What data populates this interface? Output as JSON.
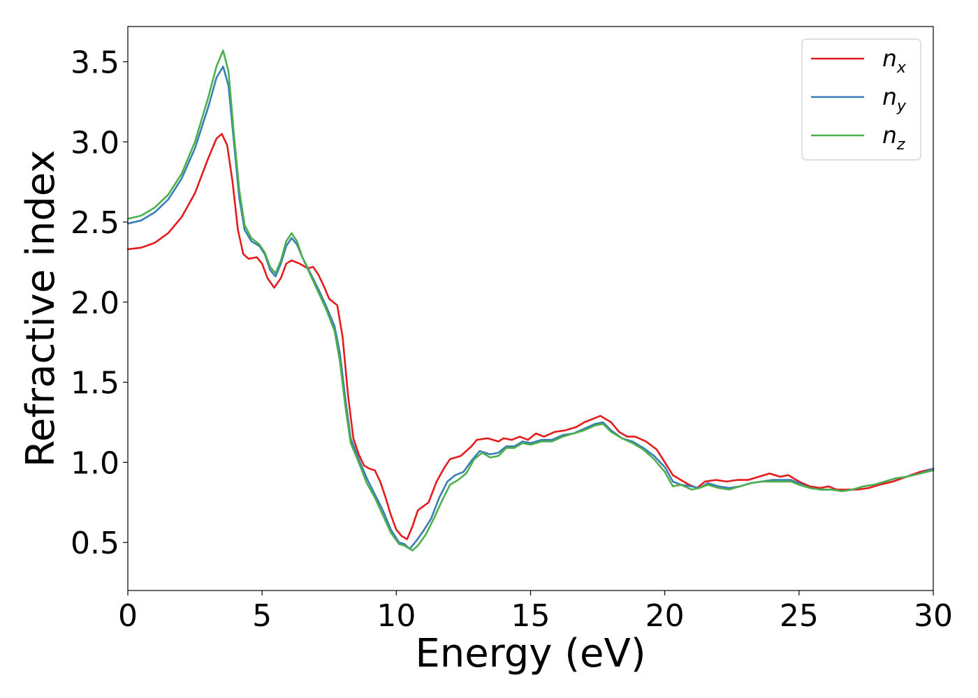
{
  "chart_data": {
    "type": "line",
    "xlabel": "Energy (eV)",
    "ylabel": "Refractive index",
    "xlim": [
      0,
      30
    ],
    "ylim": [
      0.2,
      3.72
    ],
    "xticks": [
      0,
      5,
      10,
      15,
      20,
      25,
      30
    ],
    "xtick_labels": [
      "0",
      "5",
      "10",
      "15",
      "20",
      "25",
      "30"
    ],
    "yticks": [
      0.5,
      1.0,
      1.5,
      2.0,
      2.5,
      3.0,
      3.5
    ],
    "ytick_labels": [
      "0.5",
      "1.0",
      "1.5",
      "2.0",
      "2.5",
      "3.0",
      "3.5"
    ],
    "grid": false,
    "legend_position": "top-right",
    "series": [
      {
        "name": "n",
        "subscript": "x",
        "color": "#e41a1c",
        "points": [
          [
            0,
            2.33
          ],
          [
            0.5,
            2.34
          ],
          [
            1,
            2.37
          ],
          [
            1.5,
            2.43
          ],
          [
            2,
            2.53
          ],
          [
            2.5,
            2.68
          ],
          [
            3,
            2.9
          ],
          [
            3.3,
            3.02
          ],
          [
            3.5,
            3.05
          ],
          [
            3.7,
            2.98
          ],
          [
            3.9,
            2.75
          ],
          [
            4.1,
            2.45
          ],
          [
            4.3,
            2.3
          ],
          [
            4.5,
            2.27
          ],
          [
            4.8,
            2.28
          ],
          [
            5.0,
            2.24
          ],
          [
            5.2,
            2.15
          ],
          [
            5.45,
            2.09
          ],
          [
            5.7,
            2.15
          ],
          [
            5.9,
            2.24
          ],
          [
            6.1,
            2.26
          ],
          [
            6.4,
            2.24
          ],
          [
            6.7,
            2.21
          ],
          [
            6.9,
            2.22
          ],
          [
            7.1,
            2.17
          ],
          [
            7.3,
            2.1
          ],
          [
            7.5,
            2.02
          ],
          [
            7.8,
            1.98
          ],
          [
            8.0,
            1.78
          ],
          [
            8.2,
            1.42
          ],
          [
            8.4,
            1.15
          ],
          [
            8.6,
            1.05
          ],
          [
            8.8,
            0.98
          ],
          [
            9.0,
            0.96
          ],
          [
            9.2,
            0.95
          ],
          [
            9.4,
            0.88
          ],
          [
            9.6,
            0.78
          ],
          [
            9.8,
            0.67
          ],
          [
            10.0,
            0.58
          ],
          [
            10.2,
            0.54
          ],
          [
            10.4,
            0.52
          ],
          [
            10.6,
            0.6
          ],
          [
            10.8,
            0.7
          ],
          [
            11.2,
            0.75
          ],
          [
            11.5,
            0.88
          ],
          [
            11.8,
            0.97
          ],
          [
            12.0,
            1.02
          ],
          [
            12.4,
            1.04
          ],
          [
            12.8,
            1.1
          ],
          [
            13.0,
            1.14
          ],
          [
            13.4,
            1.15
          ],
          [
            13.8,
            1.13
          ],
          [
            14.0,
            1.15
          ],
          [
            14.3,
            1.14
          ],
          [
            14.6,
            1.16
          ],
          [
            14.9,
            1.14
          ],
          [
            15.2,
            1.18
          ],
          [
            15.5,
            1.16
          ],
          [
            15.9,
            1.19
          ],
          [
            16.3,
            1.2
          ],
          [
            16.7,
            1.22
          ],
          [
            17.0,
            1.25
          ],
          [
            17.3,
            1.27
          ],
          [
            17.6,
            1.29
          ],
          [
            18.0,
            1.25
          ],
          [
            18.3,
            1.19
          ],
          [
            18.6,
            1.16
          ],
          [
            18.9,
            1.16
          ],
          [
            19.3,
            1.13
          ],
          [
            19.7,
            1.08
          ],
          [
            20.0,
            1.0
          ],
          [
            20.3,
            0.92
          ],
          [
            20.6,
            0.89
          ],
          [
            20.9,
            0.86
          ],
          [
            21.2,
            0.84
          ],
          [
            21.5,
            0.88
          ],
          [
            21.9,
            0.89
          ],
          [
            22.3,
            0.88
          ],
          [
            22.7,
            0.89
          ],
          [
            23.1,
            0.89
          ],
          [
            23.5,
            0.91
          ],
          [
            23.9,
            0.93
          ],
          [
            24.3,
            0.91
          ],
          [
            24.6,
            0.92
          ],
          [
            25.0,
            0.88
          ],
          [
            25.4,
            0.85
          ],
          [
            25.8,
            0.84
          ],
          [
            26.1,
            0.85
          ],
          [
            26.4,
            0.83
          ],
          [
            26.8,
            0.83
          ],
          [
            27.2,
            0.83
          ],
          [
            27.6,
            0.84
          ],
          [
            28.0,
            0.86
          ],
          [
            28.5,
            0.88
          ],
          [
            29.0,
            0.91
          ],
          [
            29.5,
            0.94
          ],
          [
            30.0,
            0.96
          ]
        ]
      },
      {
        "name": "n",
        "subscript": "y",
        "color": "#377eb8",
        "points": [
          [
            0,
            2.49
          ],
          [
            0.5,
            2.51
          ],
          [
            1,
            2.56
          ],
          [
            1.5,
            2.64
          ],
          [
            2,
            2.77
          ],
          [
            2.5,
            2.96
          ],
          [
            3.0,
            3.22
          ],
          [
            3.3,
            3.4
          ],
          [
            3.55,
            3.47
          ],
          [
            3.75,
            3.35
          ],
          [
            3.95,
            3.0
          ],
          [
            4.15,
            2.65
          ],
          [
            4.35,
            2.45
          ],
          [
            4.6,
            2.38
          ],
          [
            4.9,
            2.35
          ],
          [
            5.1,
            2.3
          ],
          [
            5.3,
            2.2
          ],
          [
            5.5,
            2.16
          ],
          [
            5.7,
            2.24
          ],
          [
            5.9,
            2.35
          ],
          [
            6.1,
            2.4
          ],
          [
            6.3,
            2.36
          ],
          [
            6.5,
            2.28
          ],
          [
            6.8,
            2.18
          ],
          [
            7.1,
            2.08
          ],
          [
            7.4,
            1.97
          ],
          [
            7.7,
            1.85
          ],
          [
            7.9,
            1.68
          ],
          [
            8.1,
            1.4
          ],
          [
            8.3,
            1.15
          ],
          [
            8.6,
            1.02
          ],
          [
            8.9,
            0.9
          ],
          [
            9.2,
            0.8
          ],
          [
            9.5,
            0.7
          ],
          [
            9.8,
            0.58
          ],
          [
            10.1,
            0.5
          ],
          [
            10.3,
            0.49
          ],
          [
            10.5,
            0.46
          ],
          [
            10.7,
            0.5
          ],
          [
            11.0,
            0.57
          ],
          [
            11.3,
            0.65
          ],
          [
            11.6,
            0.78
          ],
          [
            11.9,
            0.88
          ],
          [
            12.2,
            0.92
          ],
          [
            12.5,
            0.94
          ],
          [
            12.8,
            1.01
          ],
          [
            13.1,
            1.07
          ],
          [
            13.5,
            1.05
          ],
          [
            13.8,
            1.06
          ],
          [
            14.1,
            1.1
          ],
          [
            14.4,
            1.1
          ],
          [
            14.7,
            1.13
          ],
          [
            15.0,
            1.12
          ],
          [
            15.4,
            1.14
          ],
          [
            15.8,
            1.14
          ],
          [
            16.2,
            1.17
          ],
          [
            16.6,
            1.18
          ],
          [
            17.0,
            1.21
          ],
          [
            17.4,
            1.24
          ],
          [
            17.7,
            1.25
          ],
          [
            18.0,
            1.2
          ],
          [
            18.4,
            1.15
          ],
          [
            18.8,
            1.13
          ],
          [
            19.2,
            1.09
          ],
          [
            19.6,
            1.04
          ],
          [
            20.0,
            0.97
          ],
          [
            20.3,
            0.88
          ],
          [
            20.6,
            0.86
          ],
          [
            21.0,
            0.85
          ],
          [
            21.3,
            0.84
          ],
          [
            21.6,
            0.87
          ],
          [
            22.0,
            0.85
          ],
          [
            22.4,
            0.84
          ],
          [
            22.8,
            0.85
          ],
          [
            23.2,
            0.87
          ],
          [
            23.6,
            0.88
          ],
          [
            24.0,
            0.89
          ],
          [
            24.4,
            0.89
          ],
          [
            24.7,
            0.89
          ],
          [
            25.0,
            0.87
          ],
          [
            25.4,
            0.84
          ],
          [
            25.8,
            0.83
          ],
          [
            26.2,
            0.83
          ],
          [
            26.6,
            0.82
          ],
          [
            27.0,
            0.83
          ],
          [
            27.4,
            0.85
          ],
          [
            27.8,
            0.86
          ],
          [
            28.2,
            0.88
          ],
          [
            28.6,
            0.9
          ],
          [
            29.0,
            0.91
          ],
          [
            29.5,
            0.93
          ],
          [
            30.0,
            0.96
          ]
        ]
      },
      {
        "name": "n",
        "subscript": "z",
        "color": "#4daf4a",
        "points": [
          [
            0,
            2.52
          ],
          [
            0.5,
            2.54
          ],
          [
            1,
            2.59
          ],
          [
            1.5,
            2.67
          ],
          [
            2,
            2.8
          ],
          [
            2.5,
            3.0
          ],
          [
            3.0,
            3.28
          ],
          [
            3.3,
            3.47
          ],
          [
            3.55,
            3.57
          ],
          [
            3.75,
            3.44
          ],
          [
            3.95,
            3.05
          ],
          [
            4.15,
            2.7
          ],
          [
            4.35,
            2.48
          ],
          [
            4.6,
            2.4
          ],
          [
            4.9,
            2.36
          ],
          [
            5.1,
            2.31
          ],
          [
            5.3,
            2.22
          ],
          [
            5.5,
            2.18
          ],
          [
            5.7,
            2.26
          ],
          [
            5.9,
            2.38
          ],
          [
            6.1,
            2.43
          ],
          [
            6.3,
            2.38
          ],
          [
            6.5,
            2.28
          ],
          [
            6.8,
            2.17
          ],
          [
            7.1,
            2.06
          ],
          [
            7.4,
            1.95
          ],
          [
            7.7,
            1.82
          ],
          [
            7.9,
            1.63
          ],
          [
            8.1,
            1.35
          ],
          [
            8.3,
            1.12
          ],
          [
            8.6,
            1.0
          ],
          [
            8.9,
            0.87
          ],
          [
            9.2,
            0.78
          ],
          [
            9.5,
            0.67
          ],
          [
            9.8,
            0.56
          ],
          [
            10.1,
            0.49
          ],
          [
            10.3,
            0.48
          ],
          [
            10.6,
            0.45
          ],
          [
            10.8,
            0.48
          ],
          [
            11.1,
            0.55
          ],
          [
            11.4,
            0.65
          ],
          [
            11.7,
            0.76
          ],
          [
            12.0,
            0.86
          ],
          [
            12.3,
            0.89
          ],
          [
            12.6,
            0.93
          ],
          [
            12.9,
            1.02
          ],
          [
            13.2,
            1.06
          ],
          [
            13.5,
            1.03
          ],
          [
            13.8,
            1.04
          ],
          [
            14.1,
            1.09
          ],
          [
            14.4,
            1.09
          ],
          [
            14.7,
            1.12
          ],
          [
            15.0,
            1.11
          ],
          [
            15.4,
            1.13
          ],
          [
            15.8,
            1.13
          ],
          [
            16.2,
            1.16
          ],
          [
            16.6,
            1.18
          ],
          [
            17.0,
            1.2
          ],
          [
            17.4,
            1.23
          ],
          [
            17.7,
            1.24
          ],
          [
            18.0,
            1.19
          ],
          [
            18.4,
            1.15
          ],
          [
            18.8,
            1.12
          ],
          [
            19.2,
            1.08
          ],
          [
            19.6,
            1.02
          ],
          [
            20.0,
            0.94
          ],
          [
            20.3,
            0.85
          ],
          [
            20.6,
            0.86
          ],
          [
            21.0,
            0.83
          ],
          [
            21.3,
            0.84
          ],
          [
            21.6,
            0.86
          ],
          [
            22.0,
            0.84
          ],
          [
            22.4,
            0.83
          ],
          [
            22.8,
            0.85
          ],
          [
            23.2,
            0.87
          ],
          [
            23.6,
            0.88
          ],
          [
            24.0,
            0.88
          ],
          [
            24.4,
            0.88
          ],
          [
            24.7,
            0.88
          ],
          [
            25.0,
            0.86
          ],
          [
            25.4,
            0.84
          ],
          [
            25.8,
            0.83
          ],
          [
            26.2,
            0.83
          ],
          [
            26.6,
            0.82
          ],
          [
            27.0,
            0.83
          ],
          [
            27.4,
            0.85
          ],
          [
            27.8,
            0.86
          ],
          [
            28.2,
            0.88
          ],
          [
            28.6,
            0.9
          ],
          [
            29.0,
            0.91
          ],
          [
            29.5,
            0.93
          ],
          [
            30.0,
            0.95
          ]
        ]
      }
    ]
  }
}
